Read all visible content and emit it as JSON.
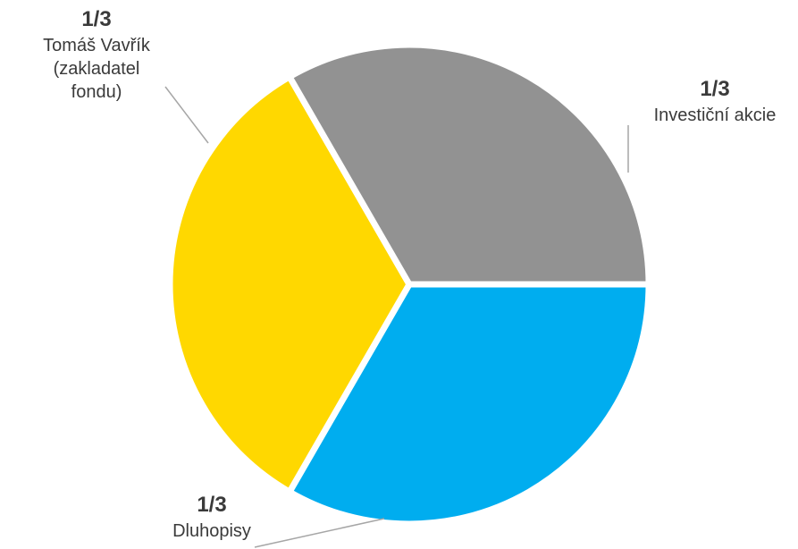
{
  "chart_data": {
    "type": "pie",
    "title": "",
    "legend": "none",
    "slices": [
      {
        "label_lines": [
          "Investiční akcie"
        ],
        "value_label": "1/3",
        "value": 0.3333,
        "color": "#00ADEF"
      },
      {
        "label_lines": [
          "Dluhopisy"
        ],
        "value_label": "1/3",
        "value": 0.3333,
        "color": "#FFD800"
      },
      {
        "label_lines": [
          "Tomáš Vavřík",
          "(zakladatel",
          "fondu)"
        ],
        "value_label": "1/3",
        "value": 0.3333,
        "color": "#929292"
      }
    ]
  }
}
